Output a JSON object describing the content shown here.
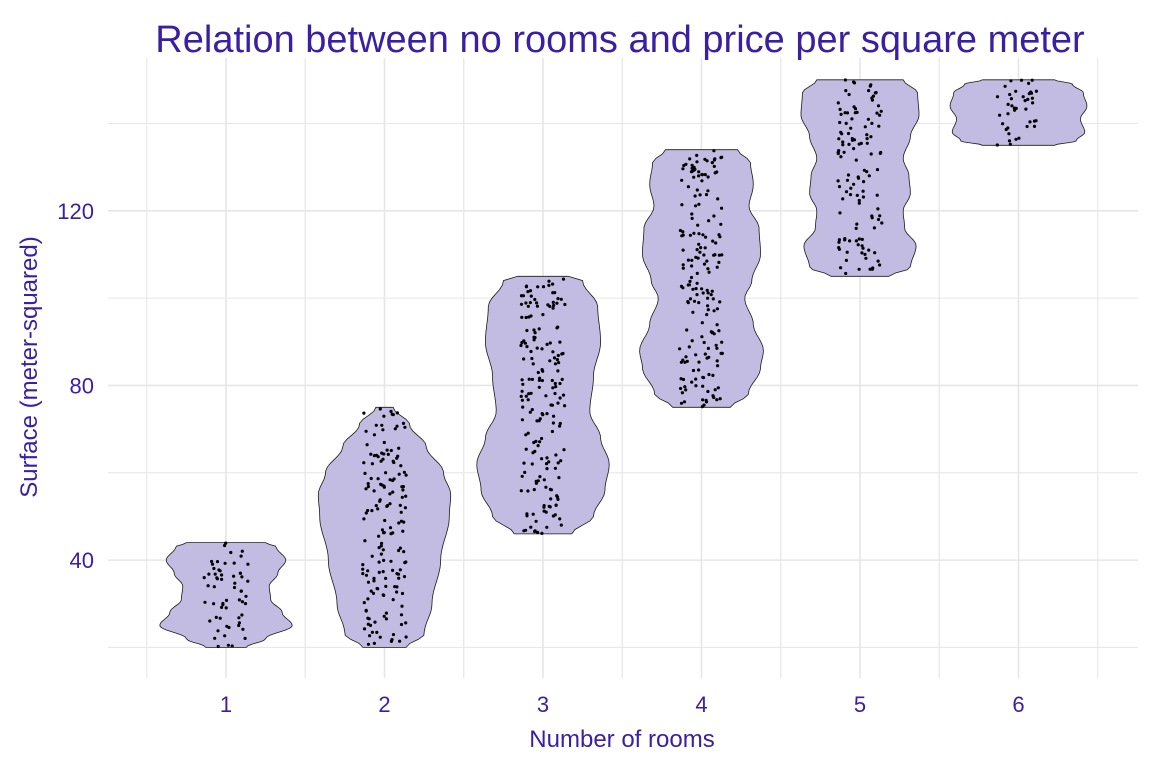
{
  "colors": {
    "text": "#3a1fa3",
    "violin_fill": "#c2bce3",
    "violin_stroke": "#1a1a1a",
    "point": "#000000",
    "grid": "#e6e6e6"
  },
  "chart_data": {
    "type": "violin",
    "title": "Relation between no rooms and price per square meter",
    "xlabel": "Number of rooms",
    "ylabel": "Surface (meter-squared)",
    "categories": [
      "1",
      "2",
      "3",
      "4",
      "5",
      "6"
    ],
    "yticks": [
      "40",
      "80",
      "120"
    ],
    "ylim": [
      13,
      155
    ],
    "grid": "on",
    "groups": [
      {
        "category": "1",
        "min": 20,
        "max": 44,
        "points": 60,
        "profile": [
          [
            20,
            0.28
          ],
          [
            22,
            0.55
          ],
          [
            25,
            0.92
          ],
          [
            28,
            0.78
          ],
          [
            31,
            0.62
          ],
          [
            34,
            0.6
          ],
          [
            37,
            0.72
          ],
          [
            40,
            0.83
          ],
          [
            43,
            0.7
          ],
          [
            44,
            0.55
          ]
        ]
      },
      {
        "category": "2",
        "min": 20,
        "max": 75,
        "points": 160,
        "profile": [
          [
            20,
            0.3
          ],
          [
            23,
            0.55
          ],
          [
            30,
            0.66
          ],
          [
            40,
            0.78
          ],
          [
            50,
            0.9
          ],
          [
            55,
            0.92
          ],
          [
            60,
            0.82
          ],
          [
            66,
            0.58
          ],
          [
            71,
            0.35
          ],
          [
            75,
            0.12
          ]
        ]
      },
      {
        "category": "3",
        "min": 46,
        "max": 105,
        "points": 180,
        "profile": [
          [
            46,
            0.4
          ],
          [
            50,
            0.7
          ],
          [
            56,
            0.86
          ],
          [
            62,
            0.92
          ],
          [
            68,
            0.8
          ],
          [
            74,
            0.65
          ],
          [
            82,
            0.7
          ],
          [
            90,
            0.8
          ],
          [
            98,
            0.76
          ],
          [
            104,
            0.55
          ],
          [
            105,
            0.35
          ]
        ]
      },
      {
        "category": "4",
        "min": 75,
        "max": 134,
        "points": 180,
        "profile": [
          [
            75,
            0.4
          ],
          [
            78,
            0.65
          ],
          [
            84,
            0.82
          ],
          [
            88,
            0.86
          ],
          [
            94,
            0.72
          ],
          [
            100,
            0.6
          ],
          [
            104,
            0.7
          ],
          [
            110,
            0.82
          ],
          [
            116,
            0.8
          ],
          [
            121,
            0.66
          ],
          [
            126,
            0.72
          ],
          [
            131,
            0.68
          ],
          [
            134,
            0.5
          ]
        ]
      },
      {
        "category": "5",
        "min": 105,
        "max": 150,
        "points": 120,
        "profile": [
          [
            105,
            0.4
          ],
          [
            107,
            0.7
          ],
          [
            112,
            0.78
          ],
          [
            116,
            0.62
          ],
          [
            120,
            0.6
          ],
          [
            124,
            0.7
          ],
          [
            128,
            0.68
          ],
          [
            132,
            0.6
          ],
          [
            137,
            0.7
          ],
          [
            142,
            0.82
          ],
          [
            147,
            0.8
          ],
          [
            150,
            0.6
          ]
        ]
      },
      {
        "category": "6",
        "min": 135,
        "max": 150,
        "points": 40,
        "profile": [
          [
            135,
            0.5
          ],
          [
            136,
            0.8
          ],
          [
            138,
            0.92
          ],
          [
            141,
            0.86
          ],
          [
            144,
            0.95
          ],
          [
            147,
            0.9
          ],
          [
            149,
            0.75
          ],
          [
            150,
            0.5
          ]
        ]
      }
    ]
  }
}
